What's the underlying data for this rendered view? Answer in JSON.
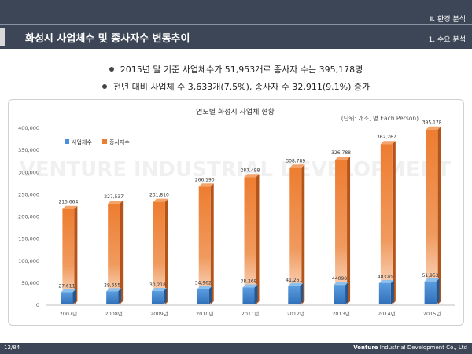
{
  "header": {
    "section": "Ⅱ. 환경 분석",
    "title": "화성시 사업체수 및 종사자수 변동추이",
    "subsection": "1. 수요 분석"
  },
  "bullets": [
    "2015년 말 기준 사업체수가 51,953개로 종사자 수는 395,178명",
    "전년 대비 사업체 수 3,633개(7.5%), 종사자 수 32,911(9.1%) 증가"
  ],
  "chart_data": {
    "type": "bar",
    "title": "연도별 화성시 사업체 현황",
    "unit_note": "(단위: 개소, 명 Each Person)",
    "watermark": "VENTURE INDUSTRIAL DEVELOPMENT",
    "categories": [
      "2007년",
      "2008년",
      "2009년",
      "2010년",
      "2011년",
      "2012년",
      "2013년",
      "2014년",
      "2015년"
    ],
    "series": [
      {
        "name": "사업체수",
        "color": "#4a8fd8",
        "values": [
          27611,
          29655,
          30218,
          34962,
          38268,
          41261,
          44098,
          48320,
          51953
        ],
        "labels": [
          "27,611",
          "29,655",
          "30,218",
          "34,962",
          "38,268",
          "41,261",
          "44098",
          "48320",
          "51,953"
        ]
      },
      {
        "name": "종사자수",
        "color": "#ed7d31",
        "values": [
          215664,
          227537,
          231810,
          266190,
          287498,
          308789,
          326788,
          362267,
          395178
        ],
        "labels": [
          "215,664",
          "227,537",
          "231,810",
          "266,190",
          "287,498",
          "308,789",
          "326,788",
          "362,267",
          "395,178"
        ]
      }
    ],
    "y_ticks": [
      "0",
      "50,000",
      "100,000",
      "150,000",
      "200,000",
      "250,000",
      "300,000",
      "350,000",
      "400,000"
    ],
    "ylim": [
      0,
      400000
    ],
    "legend_position": "top-left",
    "grid": false
  },
  "footer": {
    "page": "12/84",
    "company_bold": "Venture",
    "company_rest": " Industrial Development Co., Ltd"
  }
}
